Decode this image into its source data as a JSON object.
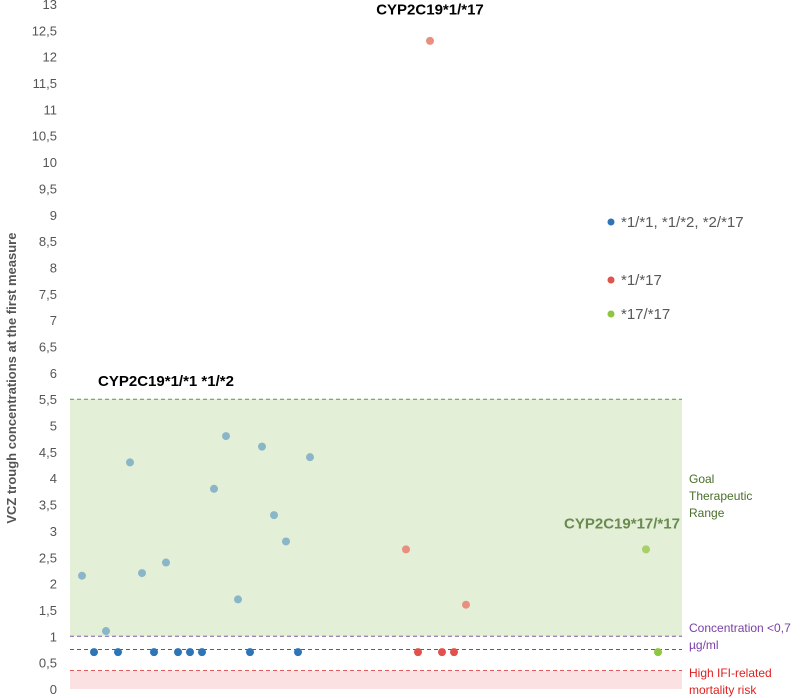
{
  "chart_data": {
    "type": "scatter",
    "ylabel": "VCZ trough concentrations at the first measure",
    "xlabel": "",
    "ylim": [
      0,
      13
    ],
    "yticks": [
      "0",
      "0,5",
      "1",
      "1,5",
      "2",
      "2,5",
      "3",
      "3,5",
      "4",
      "4,5",
      "5",
      "5,5",
      "6",
      "6,5",
      "7",
      "7,5",
      "8",
      "8,5",
      "9",
      "9,5",
      "10",
      "10,5",
      "11",
      "11,5",
      "12",
      "12,5",
      "13"
    ],
    "x_axis_shown": false,
    "grid": false,
    "legend_position": "right",
    "series": [
      {
        "name": "*1/*1, *1/*2, *2/*17",
        "color": "#2E75B6",
        "values_above_threshold_color": "#8AB6C8",
        "points": [
          {
            "x": 1,
            "y": 2.15
          },
          {
            "x": 2,
            "y": 0.7
          },
          {
            "x": 3,
            "y": 1.1
          },
          {
            "x": 4,
            "y": 0.7
          },
          {
            "x": 5,
            "y": 4.3
          },
          {
            "x": 6,
            "y": 2.2
          },
          {
            "x": 7,
            "y": 0.7
          },
          {
            "x": 8,
            "y": 2.4
          },
          {
            "x": 9,
            "y": 0.7
          },
          {
            "x": 10,
            "y": 0.7
          },
          {
            "x": 11,
            "y": 0.7
          },
          {
            "x": 12,
            "y": 3.8
          },
          {
            "x": 13,
            "y": 4.8
          },
          {
            "x": 14,
            "y": 1.7
          },
          {
            "x": 15,
            "y": 0.7
          },
          {
            "x": 16,
            "y": 4.6
          },
          {
            "x": 17,
            "y": 3.3
          },
          {
            "x": 18,
            "y": 2.8
          },
          {
            "x": 19,
            "y": 0.7
          },
          {
            "x": 20,
            "y": 4.4
          }
        ]
      },
      {
        "name": "*1/*17",
        "color": "#E0524C",
        "values_above_threshold_color": "#E89080",
        "points": [
          {
            "x": 28,
            "y": 2.65
          },
          {
            "x": 29,
            "y": 0.7
          },
          {
            "x": 30,
            "y": 12.3
          },
          {
            "x": 31,
            "y": 0.7
          },
          {
            "x": 32,
            "y": 0.7
          },
          {
            "x": 33,
            "y": 1.6
          }
        ]
      },
      {
        "name": "*17/*17",
        "color": "#8DC63F",
        "values_above_threshold_color": "#A8CF6A",
        "points": [
          {
            "x": 48,
            "y": 2.65
          },
          {
            "x": 49,
            "y": 0.7
          }
        ]
      }
    ],
    "reference_lines": [
      {
        "y": 5.5,
        "color": "#5B9A3C"
      },
      {
        "y": 1.0,
        "color": "#7B5FA0"
      },
      {
        "y": 0.75,
        "color": "#4F5B93"
      },
      {
        "y": 0.35,
        "color": "#E05A5A"
      }
    ],
    "bands": [
      {
        "from": 1.0,
        "to": 5.5,
        "color": "#E3EFD7"
      },
      {
        "from": 0,
        "to": 0.35,
        "color": "#FBE1E1"
      }
    ],
    "annotations": [
      {
        "text": "CYP2C19*1/*17",
        "at_x": 30,
        "at_y": 12.8,
        "color": "#000000"
      },
      {
        "text": "CYP2C19*1/*1 *1/*2",
        "at_x": 8,
        "at_y": 5.75,
        "color": "#000000"
      },
      {
        "text": "CYP2C19*17/*17",
        "at_x": 46,
        "at_y": 3.05,
        "color": "#6A8A4F"
      }
    ],
    "range_labels": [
      {
        "lines": [
          "Goal",
          "Therapeutic",
          "Range"
        ],
        "color": "#4A6E2B"
      },
      {
        "lines": [
          "Concentration <0,7",
          "µg/ml"
        ],
        "color": "#7B3FA6"
      },
      {
        "lines": [
          "High IFI-related",
          "mortality risk"
        ],
        "color": "#E02020"
      }
    ]
  }
}
